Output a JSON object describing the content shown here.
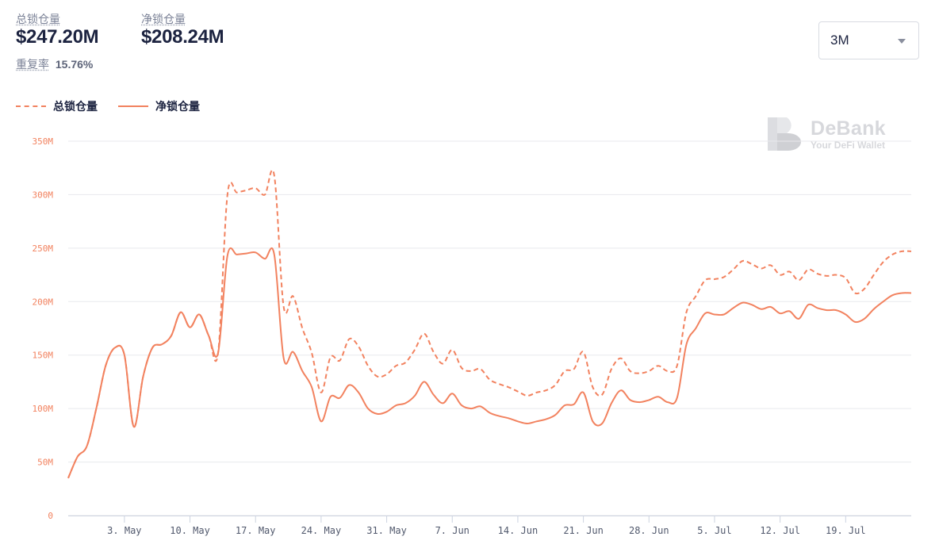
{
  "header": {
    "total_label": "总锁仓量",
    "total_value": "$247.20M",
    "net_label": "净锁仓量",
    "net_value": "$208.24M",
    "repeat_label": "重复率",
    "repeat_value": "15.76%",
    "period_select": "3M"
  },
  "watermark": {
    "title": "DeBank",
    "subtitle": "Your DeFi Wallet"
  },
  "colors": {
    "accent": "#f2825f",
    "grid": "#e8e9ed",
    "watermark": "#d7d8dc"
  },
  "icons": {
    "period_caret": "chevron-down-icon",
    "watermark_logo": "debank-logo-icon"
  },
  "chart_data": {
    "type": "line",
    "ylim": [
      0,
      350
    ],
    "yticks": [
      0,
      50,
      100,
      150,
      200,
      250,
      300,
      350
    ],
    "ytick_labels": [
      "0",
      "50M",
      "100M",
      "150M",
      "200M",
      "250M",
      "300M",
      "350M"
    ],
    "x_start": "2021-04-27",
    "x_end": "2021-07-26",
    "xticks": [
      "2021-05-03",
      "2021-05-10",
      "2021-05-17",
      "2021-05-24",
      "2021-05-31",
      "2021-06-07",
      "2021-06-14",
      "2021-06-21",
      "2021-06-28",
      "2021-07-05",
      "2021-07-12",
      "2021-07-19"
    ],
    "xtick_labels": [
      "3. May",
      "10. May",
      "17. May",
      "24. May",
      "31. May",
      "7. Jun",
      "14. Jun",
      "21. Jun",
      "28. Jun",
      "5. Jul",
      "12. Jul",
      "19. Jul"
    ],
    "grid": true,
    "legend_position": "top-left",
    "series": [
      {
        "name": "总锁仓量",
        "style": "dashed",
        "points": [
          [
            "2021-04-27",
            35
          ],
          [
            "2021-04-28",
            55
          ],
          [
            "2021-04-29",
            65
          ],
          [
            "2021-04-30",
            100
          ],
          [
            "2021-05-01",
            140
          ],
          [
            "2021-05-02",
            157
          ],
          [
            "2021-05-03",
            150
          ],
          [
            "2021-05-04",
            83
          ],
          [
            "2021-05-05",
            130
          ],
          [
            "2021-05-06",
            157
          ],
          [
            "2021-05-07",
            160
          ],
          [
            "2021-05-08",
            168
          ],
          [
            "2021-05-09",
            190
          ],
          [
            "2021-05-10",
            176
          ],
          [
            "2021-05-11",
            188
          ],
          [
            "2021-05-12",
            168
          ],
          [
            "2021-05-13",
            152
          ],
          [
            "2021-05-14",
            300
          ],
          [
            "2021-05-15",
            302
          ],
          [
            "2021-05-16",
            304
          ],
          [
            "2021-05-17",
            306
          ],
          [
            "2021-05-18",
            300
          ],
          [
            "2021-05-19",
            318
          ],
          [
            "2021-05-20",
            195
          ],
          [
            "2021-05-21",
            205
          ],
          [
            "2021-05-22",
            175
          ],
          [
            "2021-05-23",
            152
          ],
          [
            "2021-05-24",
            115
          ],
          [
            "2021-05-25",
            148
          ],
          [
            "2021-05-26",
            145
          ],
          [
            "2021-05-27",
            165
          ],
          [
            "2021-05-28",
            158
          ],
          [
            "2021-05-29",
            140
          ],
          [
            "2021-05-30",
            130
          ],
          [
            "2021-05-31",
            132
          ],
          [
            "2021-06-01",
            140
          ],
          [
            "2021-06-02",
            143
          ],
          [
            "2021-06-03",
            155
          ],
          [
            "2021-06-04",
            170
          ],
          [
            "2021-06-05",
            153
          ],
          [
            "2021-06-06",
            142
          ],
          [
            "2021-06-07",
            155
          ],
          [
            "2021-06-08",
            138
          ],
          [
            "2021-06-09",
            135
          ],
          [
            "2021-06-10",
            137
          ],
          [
            "2021-06-11",
            127
          ],
          [
            "2021-06-12",
            123
          ],
          [
            "2021-06-13",
            120
          ],
          [
            "2021-06-14",
            116
          ],
          [
            "2021-06-15",
            112
          ],
          [
            "2021-06-16",
            115
          ],
          [
            "2021-06-17",
            117
          ],
          [
            "2021-06-18",
            122
          ],
          [
            "2021-06-19",
            135
          ],
          [
            "2021-06-20",
            137
          ],
          [
            "2021-06-21",
            153
          ],
          [
            "2021-06-22",
            120
          ],
          [
            "2021-06-23",
            113
          ],
          [
            "2021-06-24",
            137
          ],
          [
            "2021-06-25",
            147
          ],
          [
            "2021-06-26",
            135
          ],
          [
            "2021-06-27",
            133
          ],
          [
            "2021-06-28",
            135
          ],
          [
            "2021-06-29",
            140
          ],
          [
            "2021-06-30",
            135
          ],
          [
            "2021-07-01",
            140
          ],
          [
            "2021-07-02",
            190
          ],
          [
            "2021-07-03",
            205
          ],
          [
            "2021-07-04",
            220
          ],
          [
            "2021-07-05",
            221
          ],
          [
            "2021-07-06",
            223
          ],
          [
            "2021-07-07",
            230
          ],
          [
            "2021-07-08",
            238
          ],
          [
            "2021-07-09",
            235
          ],
          [
            "2021-07-10",
            231
          ],
          [
            "2021-07-11",
            234
          ],
          [
            "2021-07-12",
            225
          ],
          [
            "2021-07-13",
            228
          ],
          [
            "2021-07-14",
            220
          ],
          [
            "2021-07-15",
            230
          ],
          [
            "2021-07-16",
            226
          ],
          [
            "2021-07-17",
            224
          ],
          [
            "2021-07-18",
            225
          ],
          [
            "2021-07-19",
            222
          ],
          [
            "2021-07-20",
            208
          ],
          [
            "2021-07-21",
            212
          ],
          [
            "2021-07-22",
            225
          ],
          [
            "2021-07-23",
            237
          ],
          [
            "2021-07-24",
            244
          ],
          [
            "2021-07-25",
            247
          ],
          [
            "2021-07-26",
            247
          ]
        ]
      },
      {
        "name": "净锁仓量",
        "style": "solid",
        "points": [
          [
            "2021-04-27",
            35
          ],
          [
            "2021-04-28",
            55
          ],
          [
            "2021-04-29",
            65
          ],
          [
            "2021-04-30",
            100
          ],
          [
            "2021-05-01",
            140
          ],
          [
            "2021-05-02",
            157
          ],
          [
            "2021-05-03",
            150
          ],
          [
            "2021-05-04",
            83
          ],
          [
            "2021-05-05",
            130
          ],
          [
            "2021-05-06",
            157
          ],
          [
            "2021-05-07",
            160
          ],
          [
            "2021-05-08",
            168
          ],
          [
            "2021-05-09",
            190
          ],
          [
            "2021-05-10",
            176
          ],
          [
            "2021-05-11",
            188
          ],
          [
            "2021-05-12",
            168
          ],
          [
            "2021-05-13",
            152
          ],
          [
            "2021-05-14",
            243
          ],
          [
            "2021-05-15",
            244
          ],
          [
            "2021-05-16",
            245
          ],
          [
            "2021-05-17",
            246
          ],
          [
            "2021-05-18",
            240
          ],
          [
            "2021-05-19",
            244
          ],
          [
            "2021-05-20",
            147
          ],
          [
            "2021-05-21",
            153
          ],
          [
            "2021-05-22",
            135
          ],
          [
            "2021-05-23",
            120
          ],
          [
            "2021-05-24",
            88
          ],
          [
            "2021-05-25",
            111
          ],
          [
            "2021-05-26",
            110
          ],
          [
            "2021-05-27",
            122
          ],
          [
            "2021-05-28",
            115
          ],
          [
            "2021-05-29",
            100
          ],
          [
            "2021-05-30",
            95
          ],
          [
            "2021-05-31",
            97
          ],
          [
            "2021-06-01",
            103
          ],
          [
            "2021-06-02",
            105
          ],
          [
            "2021-06-03",
            112
          ],
          [
            "2021-06-04",
            125
          ],
          [
            "2021-06-05",
            113
          ],
          [
            "2021-06-06",
            105
          ],
          [
            "2021-06-07",
            114
          ],
          [
            "2021-06-08",
            103
          ],
          [
            "2021-06-09",
            100
          ],
          [
            "2021-06-10",
            102
          ],
          [
            "2021-06-11",
            96
          ],
          [
            "2021-06-12",
            93
          ],
          [
            "2021-06-13",
            91
          ],
          [
            "2021-06-14",
            88
          ],
          [
            "2021-06-15",
            86
          ],
          [
            "2021-06-16",
            88
          ],
          [
            "2021-06-17",
            90
          ],
          [
            "2021-06-18",
            94
          ],
          [
            "2021-06-19",
            103
          ],
          [
            "2021-06-20",
            104
          ],
          [
            "2021-06-21",
            115
          ],
          [
            "2021-06-22",
            88
          ],
          [
            "2021-06-23",
            86
          ],
          [
            "2021-06-24",
            105
          ],
          [
            "2021-06-25",
            117
          ],
          [
            "2021-06-26",
            108
          ],
          [
            "2021-06-27",
            106
          ],
          [
            "2021-06-28",
            108
          ],
          [
            "2021-06-29",
            111
          ],
          [
            "2021-06-30",
            106
          ],
          [
            "2021-07-01",
            110
          ],
          [
            "2021-07-02",
            160
          ],
          [
            "2021-07-03",
            175
          ],
          [
            "2021-07-04",
            189
          ],
          [
            "2021-07-05",
            188
          ],
          [
            "2021-07-06",
            188
          ],
          [
            "2021-07-07",
            194
          ],
          [
            "2021-07-08",
            199
          ],
          [
            "2021-07-09",
            197
          ],
          [
            "2021-07-10",
            193
          ],
          [
            "2021-07-11",
            195
          ],
          [
            "2021-07-12",
            189
          ],
          [
            "2021-07-13",
            191
          ],
          [
            "2021-07-14",
            184
          ],
          [
            "2021-07-15",
            197
          ],
          [
            "2021-07-16",
            194
          ],
          [
            "2021-07-17",
            192
          ],
          [
            "2021-07-18",
            192
          ],
          [
            "2021-07-19",
            188
          ],
          [
            "2021-07-20",
            181
          ],
          [
            "2021-07-21",
            184
          ],
          [
            "2021-07-22",
            193
          ],
          [
            "2021-07-23",
            200
          ],
          [
            "2021-07-24",
            206
          ],
          [
            "2021-07-25",
            208
          ],
          [
            "2021-07-26",
            208
          ]
        ]
      }
    ]
  }
}
